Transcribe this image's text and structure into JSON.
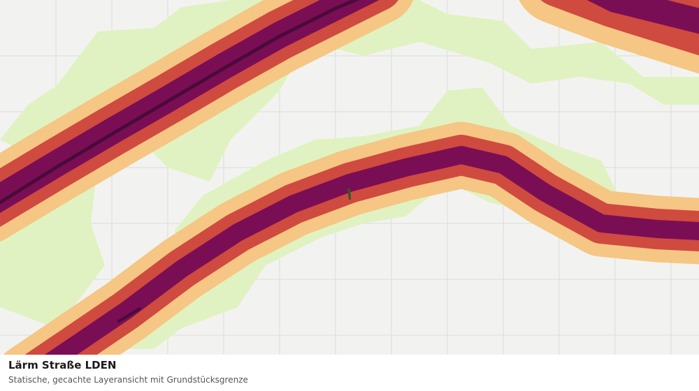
{
  "footer": {
    "title": "Lärm Straße LDEN",
    "subtitle": "Statische, gecachte Layeransicht mit Grundstücksgrenze"
  }
}
